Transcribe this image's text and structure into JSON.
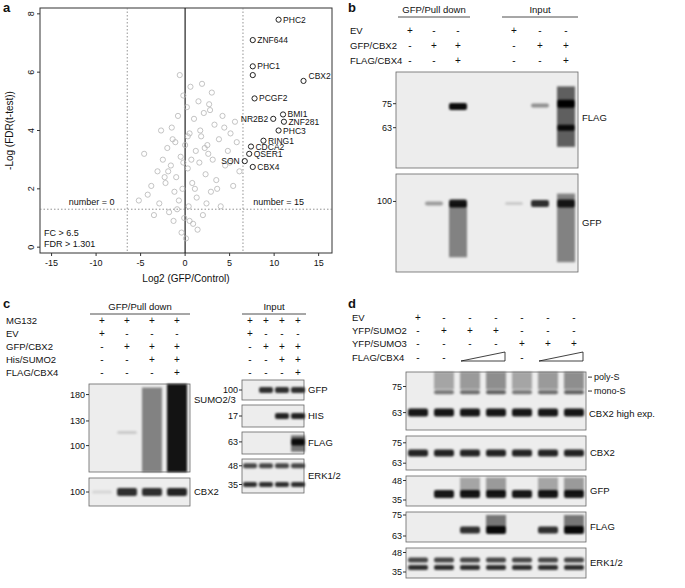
{
  "panel_labels": [
    "a",
    "b",
    "c",
    "d"
  ],
  "chart_data": {
    "type": "scatter",
    "x_label": "Log2 (GFP/Control)",
    "y_label": "-Log (FDR(t-test))",
    "xlim": [
      -16.3,
      16.5
    ],
    "ylim": [
      -0.2,
      8.2
    ],
    "xticks": [
      -15,
      -10,
      -5,
      0,
      5,
      10,
      15
    ],
    "yticks": [
      0,
      2,
      4,
      6,
      8
    ],
    "grid": false,
    "reference_lines": [
      {
        "axis": "x",
        "value": -6.5,
        "line_style": "dotted"
      },
      {
        "axis": "x",
        "value": 0,
        "line_style": "solid"
      },
      {
        "axis": "x",
        "value": 6.5,
        "line_style": "dotted"
      },
      {
        "axis": "y",
        "value": 1.301,
        "line_style": "dotted"
      }
    ],
    "annotations": [
      "number = 0",
      "number = 15",
      "FC > 6.5",
      "FDR > 1.301"
    ],
    "series": [
      {
        "color": "#b5b5b5",
        "marker": "circle",
        "x": [
          -4.2,
          -3.8,
          -3.1,
          -2.9,
          -2.5,
          -2.2,
          -2.0,
          -1.8,
          -1.6,
          -1.5,
          -1.3,
          -1.1,
          -1.0,
          -0.8,
          -0.7,
          -0.5,
          -0.4,
          -0.3,
          -0.2,
          -0.1,
          0.1,
          0.2,
          0.3,
          0.4,
          0.5,
          0.6,
          0.8,
          0.9,
          1.0,
          1.2,
          1.3,
          1.5,
          1.6,
          1.8,
          2.0,
          2.1,
          2.3,
          2.5,
          2.7,
          2.9,
          3.1,
          3.3,
          3.5,
          3.8,
          4.0,
          4.2,
          4.5,
          4.8,
          5.1,
          5.4,
          5.8,
          6.1,
          -5.2,
          -4.6,
          -3.5,
          -2.7,
          -1.9,
          -1.2,
          -0.6,
          0.0,
          0.7,
          1.4,
          2.2,
          2.8,
          3.6,
          4.4,
          5.0,
          5.6,
          -0.9,
          1.1,
          0.5,
          -1.4,
          2.4,
          3.0,
          1.7,
          -2.3,
          0.3,
          -0.2,
          1.9,
          2.6
        ],
        "values": [
          1.8,
          2.1,
          2.6,
          1.5,
          3.0,
          2.2,
          3.4,
          1.2,
          2.8,
          4.1,
          0.9,
          3.6,
          2.4,
          4.5,
          1.6,
          3.1,
          0.5,
          2.0,
          5.2,
          1.0,
          0.3,
          4.8,
          2.7,
          1.4,
          3.9,
          5.5,
          2.2,
          0.8,
          4.4,
          3.3,
          1.7,
          5.0,
          2.9,
          3.8,
          1.1,
          4.6,
          2.5,
          3.5,
          4.9,
          1.9,
          3.0,
          4.2,
          2.3,
          3.7,
          1.4,
          4.5,
          2.8,
          3.3,
          3.9,
          2.1,
          3.6,
          2.6,
          1.6,
          3.2,
          1.1,
          4.0,
          2.6,
          1.9,
          5.9,
          3.5,
          3.0,
          0.6,
          3.4,
          4.7,
          2.0,
          4.1,
          2.9,
          4.3,
          1.3,
          2.0,
          0.9,
          3.7,
          1.5,
          5.3,
          4.0,
          2.4,
          3.8,
          2.9,
          5.6,
          3.2
        ]
      },
      {
        "color": "#222222",
        "marker": "circle",
        "x": [
          10.5,
          7.6,
          7.6,
          7.6,
          13.3,
          7.8,
          11.0,
          9.9,
          11.1,
          10.5,
          8.8,
          7.4,
          7.2,
          6.7,
          7.6
        ],
        "values": [
          7.8,
          7.1,
          6.2,
          5.9,
          5.7,
          5.1,
          4.55,
          4.4,
          4.3,
          4.0,
          3.65,
          3.45,
          3.2,
          2.95,
          2.75
        ],
        "labels": [
          "PHC2",
          "ZNF644",
          "PHC1",
          null,
          "CBX2",
          "PCGF2",
          "BMI1",
          "NR2B2",
          "ZNF281",
          "PHC3",
          "RING1",
          "CDCA2",
          "QSER1",
          "SON",
          "CBX4"
        ]
      }
    ]
  },
  "blots": {
    "b": {
      "headers": [
        "GFP/Pull down",
        "Input"
      ],
      "conditions": [
        {
          "label": "EV",
          "lanes": [
            "+",
            "-",
            "-",
            "+",
            "-",
            "-"
          ]
        },
        {
          "label": "GFP/CBX2",
          "lanes": [
            "-",
            "+",
            "+",
            "-",
            "+",
            "+"
          ]
        },
        {
          "label": "FLAG/CBX4",
          "lanes": [
            "-",
            "-",
            "+",
            "-",
            "-",
            "+"
          ]
        }
      ],
      "blots": [
        {
          "antibody": "FLAG",
          "markers": [
            75,
            63
          ]
        },
        {
          "antibody": "GFP",
          "markers": [
            100
          ]
        }
      ]
    },
    "c": {
      "headers": [
        "GFP/Pull down",
        "Input"
      ],
      "conditions": [
        {
          "label": "MG132",
          "lanes": [
            "+",
            "+",
            "+",
            "+"
          ]
        },
        {
          "label": "EV",
          "lanes": [
            "+",
            "-",
            "-",
            "-"
          ]
        },
        {
          "label": "GFP/CBX2",
          "lanes": [
            "-",
            "+",
            "+",
            "+"
          ]
        },
        {
          "label": "His/SUMO2",
          "lanes": [
            "-",
            "-",
            "+",
            "+"
          ]
        },
        {
          "label": "FLAG/CBX4",
          "lanes": [
            "-",
            "-",
            "-",
            "+"
          ]
        }
      ],
      "blots": [
        {
          "antibody": "SUMO2/3",
          "markers": [
            180,
            130,
            100
          ]
        },
        {
          "antibody": "CBX2",
          "markers": [
            100
          ]
        }
      ],
      "input_blots": [
        {
          "antibody": "GFP",
          "markers": [
            100
          ]
        },
        {
          "antibody": "HIS",
          "markers": [
            17
          ]
        },
        {
          "antibody": "FLAG",
          "markers": [
            63
          ]
        },
        {
          "antibody": "ERK1/2",
          "markers": [
            48,
            35
          ]
        }
      ]
    },
    "d": {
      "conditions": [
        {
          "label": "EV",
          "lanes": [
            "+",
            "-",
            "-",
            "-",
            "-",
            "-",
            "-"
          ]
        },
        {
          "label": "YFP/SUMO2",
          "lanes": [
            "-",
            "+",
            "+",
            "+",
            "-",
            "-",
            "-"
          ]
        },
        {
          "label": "YFP/SUMO3",
          "lanes": [
            "-",
            "-",
            "-",
            "-",
            "+",
            "+",
            "+"
          ]
        },
        {
          "label": "FLAG/CBX4",
          "lanes": [
            "-",
            "-",
            null,
            null,
            "-",
            null,
            null
          ]
        }
      ],
      "blots": [
        {
          "antibody": "CBX2 high exp.",
          "band_labels": [
            "poly-S",
            "mono-S"
          ],
          "markers": [
            75,
            63
          ]
        },
        {
          "antibody": "CBX2",
          "markers": [
            75,
            63
          ]
        },
        {
          "antibody": "GFP",
          "markers": [
            48,
            35
          ]
        },
        {
          "antibody": "FLAG",
          "markers": [
            75,
            63
          ]
        },
        {
          "antibody": "ERK1/2",
          "markers": [
            48,
            35
          ]
        }
      ]
    }
  }
}
